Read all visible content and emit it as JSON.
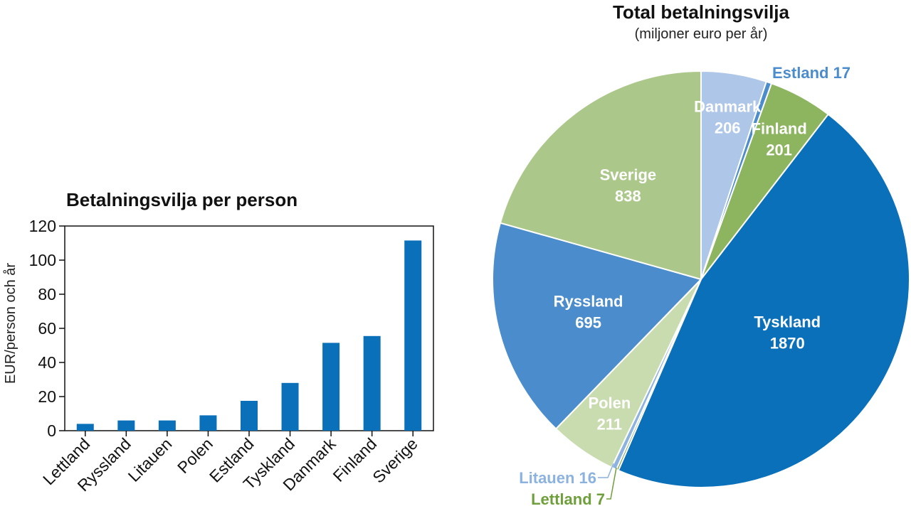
{
  "chart_data": [
    {
      "type": "bar",
      "title": "Betalningsvilja per person",
      "xlabel": "",
      "ylabel": "EUR/person och år",
      "ylim": [
        0,
        120
      ],
      "yticks": [
        "0",
        "20",
        "40",
        "60",
        "80",
        "100",
        "120"
      ],
      "categories": [
        "Lettland",
        "Ryssland",
        "Litauen",
        "Polen",
        "Estland",
        "Tyskland",
        "Danmark",
        "Finland",
        "Sverige"
      ],
      "values": [
        4,
        6,
        6,
        9,
        17.5,
        28,
        51.5,
        55.5,
        111.5
      ],
      "color": "#0a70ba",
      "grid": false
    },
    {
      "type": "pie",
      "title": "Total betalningsvilja",
      "subtitle": "(miljoner euro per år)",
      "slices": [
        {
          "label": "Danmark",
          "value": 206,
          "value_text": "206",
          "color": "#aec6e8",
          "label_color": "#ffffff"
        },
        {
          "label": "Estland",
          "value": 17,
          "value_text": "Estland 17",
          "color": "#4b8ccc",
          "label_color": "#4b8ccc"
        },
        {
          "label": "Finland",
          "value": 201,
          "value_text": "201",
          "color": "#8db55f",
          "label_color": "#ffffff"
        },
        {
          "label": "Tyskland",
          "value": 1870,
          "value_text": "1870",
          "color": "#0a70ba",
          "label_color": "#ffffff"
        },
        {
          "label": "Lettland",
          "value": 7,
          "value_text": "Lettland 7",
          "color": "#6e9f3a",
          "label_color": "#6e9f3a"
        },
        {
          "label": "Litauen",
          "value": 16,
          "value_text": "Litauen 16",
          "color": "#8cb2e0",
          "label_color": "#8cb2e0"
        },
        {
          "label": "Polen",
          "value": 211,
          "value_text": "211",
          "color": "#c9dcb0",
          "label_color": "#ffffff"
        },
        {
          "label": "Ryssland",
          "value": 695,
          "value_text": "695",
          "color": "#4b8ccc",
          "label_color": "#ffffff"
        },
        {
          "label": "Sverige",
          "value": 838,
          "value_text": "838",
          "color": "#abc88a",
          "label_color": "#ffffff"
        }
      ]
    }
  ]
}
